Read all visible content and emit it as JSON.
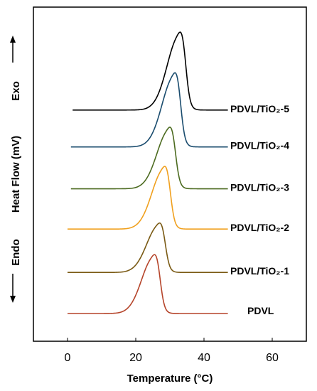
{
  "chart_data": {
    "type": "line",
    "title": "",
    "xlabel": "Temperature (°C)",
    "ylabel": "Heat Flow (mV)",
    "ylabel_top": "Exo",
    "ylabel_bottom": "Endo",
    "xlim": [
      -10,
      70
    ],
    "xticks": [
      0,
      20,
      40,
      60
    ],
    "y_ticks_shown": false,
    "grid": false,
    "legend": "labels at right end of each curve",
    "series": [
      {
        "name": "PDVL",
        "color": "#b5442a",
        "baseline": 0.0,
        "peak_x": 25.5,
        "peak_height": 1.55,
        "x_start": 0,
        "x_end": 47
      },
      {
        "name": "PDVL/TiO₂-1",
        "color": "#7a5a14",
        "baseline": 1.08,
        "peak_x": 27.0,
        "peak_height": 1.3,
        "x_start": 0,
        "x_end": 47
      },
      {
        "name": "PDVL/TiO₂-2",
        "color": "#f0a01e",
        "baseline": 2.22,
        "peak_x": 28.5,
        "peak_height": 1.65,
        "x_start": 0,
        "x_end": 47
      },
      {
        "name": "PDVL/TiO₂-3",
        "color": "#4c6b20",
        "baseline": 3.28,
        "peak_x": 30.0,
        "peak_height": 1.62,
        "x_start": 1,
        "x_end": 47
      },
      {
        "name": "PDVL/TiO₂-4",
        "color": "#1a4c6e",
        "baseline": 4.38,
        "peak_x": 31.5,
        "peak_height": 1.95,
        "x_start": 1,
        "x_end": 47
      },
      {
        "name": "PDVL/TiO₂-5",
        "color": "#000000",
        "baseline": 5.35,
        "peak_x": 33.0,
        "peak_height": 2.05,
        "x_start": 1.5,
        "x_end": 47
      }
    ]
  }
}
